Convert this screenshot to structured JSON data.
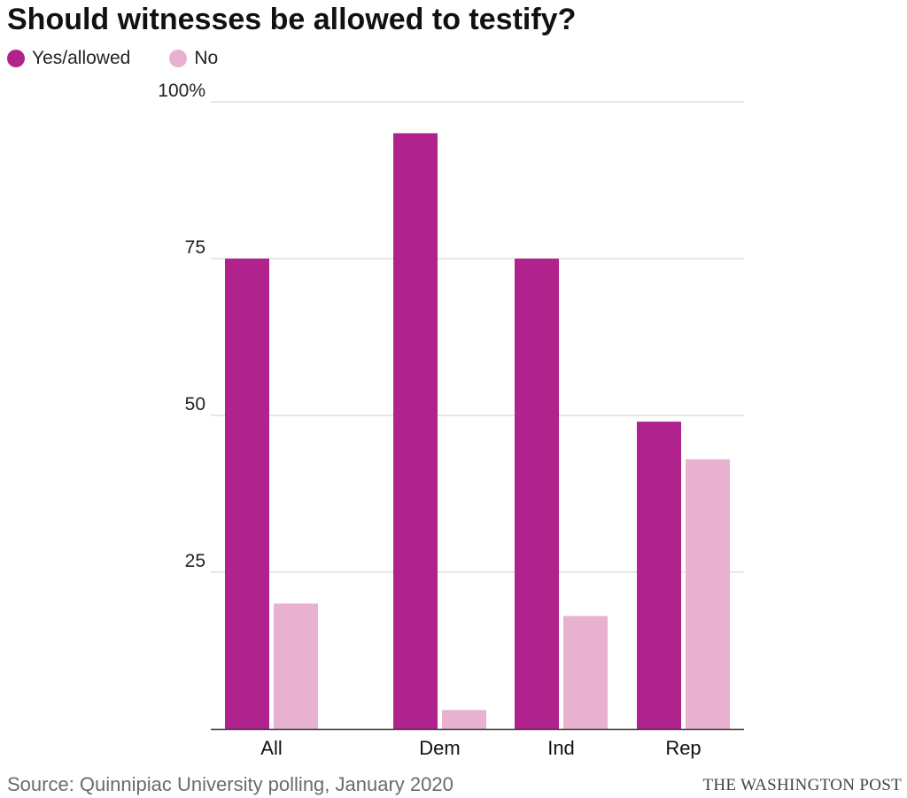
{
  "title": "Should witnesses be allowed to testify?",
  "legend": [
    {
      "label": "Yes/allowed",
      "color": "#b0238c"
    },
    {
      "label": "No",
      "color": "#e8b1d0"
    }
  ],
  "footer": {
    "source": "Source: Quinnipiac University polling, January 2020",
    "credit": "THE WASHINGTON POST"
  },
  "chart_data": {
    "type": "bar",
    "title": "Should witnesses be allowed to testify?",
    "xlabel": "",
    "ylabel": "",
    "categories": [
      "All",
      "Dem",
      "Ind",
      "Rep"
    ],
    "series": [
      {
        "name": "Yes/allowed",
        "color": "#b0238c",
        "values": [
          75,
          95,
          75,
          49
        ]
      },
      {
        "name": "No",
        "color": "#e8b1d0",
        "values": [
          20,
          3,
          18,
          43
        ]
      }
    ],
    "ylim": [
      0,
      100
    ],
    "yticks": [
      25,
      50,
      75,
      100
    ],
    "ytick_labels": [
      "25",
      "50",
      "75",
      "100%"
    ],
    "grid": true,
    "legend_position": "top-left"
  }
}
